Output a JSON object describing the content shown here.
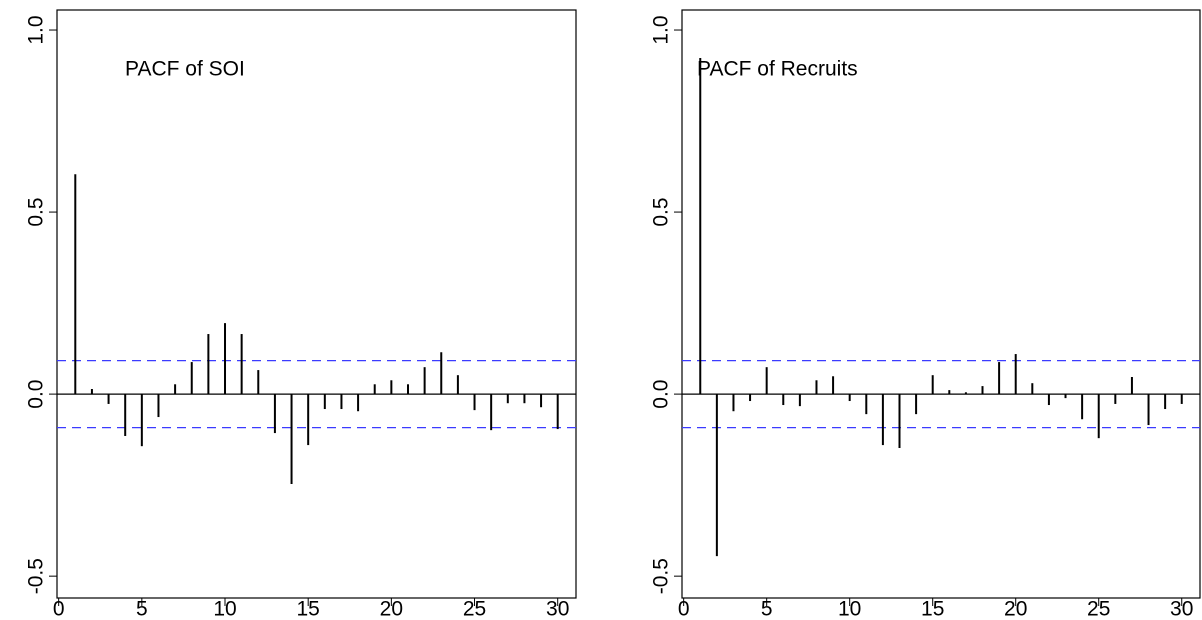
{
  "chart_data": [
    {
      "type": "stem",
      "title": "PACF of SOI",
      "x": [
        1,
        2,
        3,
        4,
        5,
        6,
        7,
        8,
        9,
        10,
        11,
        12,
        13,
        14,
        15,
        16,
        17,
        18,
        19,
        20,
        21,
        22,
        23,
        24,
        25,
        26,
        27,
        28,
        29,
        30
      ],
      "values": [
        0.604,
        0.014,
        -0.027,
        -0.115,
        -0.143,
        -0.063,
        0.027,
        0.088,
        0.165,
        0.195,
        0.165,
        0.066,
        -0.107,
        -0.247,
        -0.14,
        -0.041,
        -0.041,
        -0.047,
        0.027,
        0.038,
        0.027,
        0.074,
        0.115,
        0.052,
        -0.044,
        -0.099,
        -0.025,
        -0.025,
        -0.036,
        -0.096
      ],
      "color": "#000000",
      "ci": 0.092,
      "ci_color": "#3b3bff",
      "xlim": [
        -0.1,
        31.1
      ],
      "xticks": [
        0,
        5,
        10,
        15,
        20,
        25,
        30
      ],
      "ylim": [
        -0.56,
        1.055
      ],
      "yticks": [
        -0.5,
        {
          "value": 0,
          "label": "0.0"
        },
        0.5,
        {
          "value": 1,
          "label": "1.0"
        }
      ]
    },
    {
      "type": "stem",
      "title": "PACF of Recruits",
      "x": [
        1,
        2,
        3,
        4,
        5,
        6,
        7,
        8,
        9,
        10,
        11,
        12,
        13,
        14,
        15,
        16,
        17,
        18,
        19,
        20,
        21,
        22,
        23,
        24,
        25,
        26,
        27,
        28,
        29,
        30
      ],
      "values": [
        0.923,
        -0.445,
        -0.047,
        -0.019,
        0.074,
        -0.03,
        -0.033,
        0.038,
        0.049,
        -0.019,
        -0.055,
        -0.14,
        -0.148,
        -0.055,
        0.052,
        0.011,
        0.005,
        0.022,
        0.088,
        0.11,
        0.03,
        -0.03,
        -0.011,
        -0.069,
        -0.121,
        -0.027,
        0.047,
        -0.085,
        -0.041,
        -0.027
      ],
      "color": "#000000",
      "ci": 0.092,
      "ci_color": "#3b3bff",
      "xlim": [
        -0.1,
        31.1
      ],
      "xticks": [
        0,
        5,
        10,
        15,
        20,
        25,
        30
      ],
      "ylim": [
        -0.56,
        1.055
      ],
      "yticks": [
        -0.5,
        {
          "value": 0,
          "label": "0.0"
        },
        0.5,
        {
          "value": 1,
          "label": "1.0"
        }
      ]
    }
  ]
}
